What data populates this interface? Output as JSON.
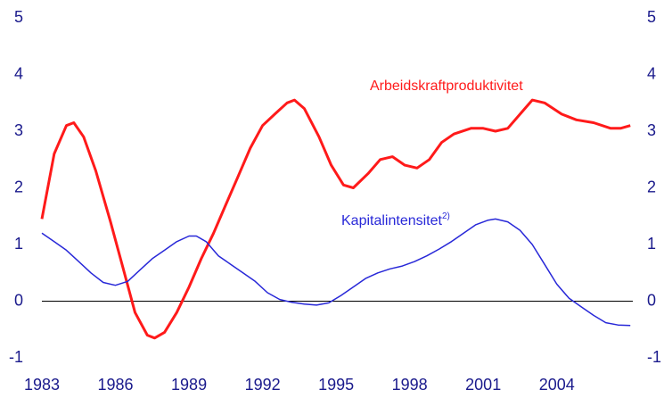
{
  "chart_data": {
    "type": "line",
    "xlim": [
      1983,
      2007.1
    ],
    "xticks": [
      1983,
      1986,
      1989,
      1992,
      1995,
      1998,
      2001,
      2004
    ],
    "ylim": [
      -1,
      5
    ],
    "yticks": [
      -1,
      0,
      1,
      2,
      3,
      4,
      5
    ],
    "y2lim": [
      -1,
      5
    ],
    "y2ticks": [
      -1,
      0,
      1,
      2,
      3,
      4,
      5
    ],
    "series": [
      {
        "name": "Arbeidskraftproduktivitet",
        "color": "#ff1a1a",
        "x": [
          1983,
          1983.5,
          1984,
          1984.3,
          1984.7,
          1985.2,
          1985.8,
          1986.3,
          1986.8,
          1987.3,
          1987.6,
          1988,
          1988.5,
          1989,
          1989.5,
          1990,
          1990.5,
          1991,
          1991.5,
          1992,
          1992.5,
          1993,
          1993.3,
          1993.7,
          1994.3,
          1994.8,
          1995.3,
          1995.7,
          1996.3,
          1996.8,
          1997.3,
          1997.8,
          1998.3,
          1998.8,
          1999.3,
          1999.8,
          2000.5,
          2001,
          2001.5,
          2002,
          2002.5,
          2003,
          2003.5,
          2004.2,
          2004.8,
          2005.5,
          2006.2,
          2006.6,
          2007
        ],
        "values": [
          1.45,
          2.6,
          3.1,
          3.15,
          2.9,
          2.3,
          1.4,
          0.6,
          -0.2,
          -0.6,
          -0.65,
          -0.55,
          -0.2,
          0.25,
          0.75,
          1.2,
          1.7,
          2.2,
          2.7,
          3.1,
          3.3,
          3.5,
          3.55,
          3.4,
          2.9,
          2.4,
          2.05,
          2.0,
          2.25,
          2.5,
          2.55,
          2.4,
          2.35,
          2.5,
          2.8,
          2.95,
          3.05,
          3.05,
          3.0,
          3.05,
          3.3,
          3.55,
          3.5,
          3.3,
          3.2,
          3.15,
          3.05,
          3.05,
          3.1
        ]
      },
      {
        "name": "Kapitalintensitet",
        "footnote_mark": "2)",
        "color": "#2828d8",
        "x": [
          1983,
          1983.5,
          1984,
          1984.5,
          1985,
          1985.5,
          1986,
          1986.5,
          1987,
          1987.5,
          1988,
          1988.5,
          1989,
          1989.3,
          1989.7,
          1990.2,
          1990.7,
          1991.2,
          1991.7,
          1992.2,
          1992.7,
          1993.2,
          1993.7,
          1994.2,
          1994.7,
          1995.2,
          1995.7,
          1996.2,
          1996.7,
          1997.2,
          1997.7,
          1998.2,
          1998.7,
          1999.2,
          1999.7,
          2000.2,
          2000.7,
          2001.2,
          2001.5,
          2002,
          2002.5,
          2003,
          2003.5,
          2004,
          2004.5,
          2005,
          2005.5,
          2006,
          2006.5,
          2007
        ],
        "values": [
          1.2,
          1.05,
          0.9,
          0.7,
          0.5,
          0.33,
          0.28,
          0.35,
          0.55,
          0.75,
          0.9,
          1.05,
          1.15,
          1.15,
          1.05,
          0.8,
          0.65,
          0.5,
          0.35,
          0.15,
          0.03,
          -0.02,
          -0.05,
          -0.07,
          -0.03,
          0.1,
          0.25,
          0.4,
          0.5,
          0.57,
          0.62,
          0.7,
          0.8,
          0.92,
          1.05,
          1.2,
          1.35,
          1.43,
          1.45,
          1.4,
          1.25,
          1.0,
          0.65,
          0.3,
          0.05,
          -0.1,
          -0.25,
          -0.38,
          -0.42,
          -0.43
        ]
      }
    ]
  }
}
